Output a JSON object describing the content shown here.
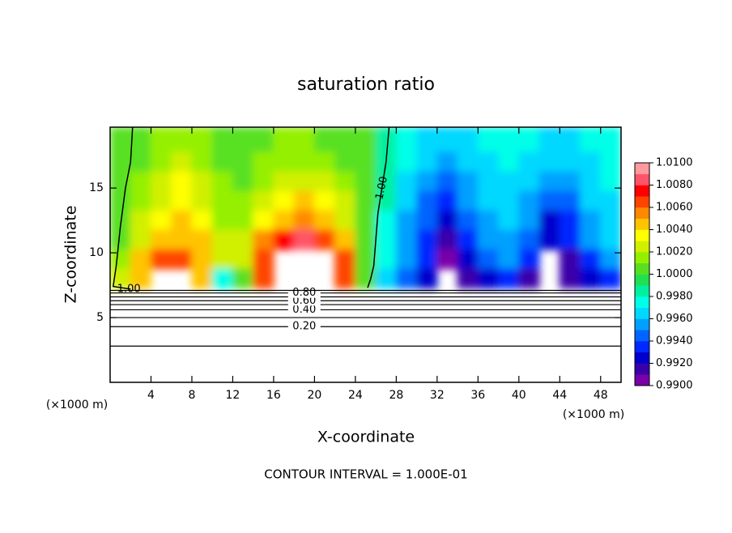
{
  "chart_data": {
    "type": "contour",
    "title": "saturation ratio",
    "x_label": "X-coordinate",
    "y_label": "Z-coordinate",
    "x_unit": "(×1000 m)",
    "footer": "CONTOUR INTERVAL = 1.000E-01",
    "xlim": [
      0,
      50
    ],
    "ylim": [
      0,
      19.7
    ],
    "xticks": [
      4,
      8,
      12,
      16,
      20,
      24,
      28,
      32,
      36,
      40,
      44,
      48
    ],
    "yticks": [
      5,
      10,
      15
    ],
    "clim": [
      0.99,
      1.01
    ],
    "colors": [
      "#7a00a8",
      "#3a00a8",
      "#0000cc",
      "#0028ff",
      "#0064ff",
      "#00a0ff",
      "#00d8ff",
      "#00ffe8",
      "#00f0a0",
      "#20e050",
      "#58e020",
      "#94f000",
      "#d0f000",
      "#ffff00",
      "#ffc400",
      "#ff8800",
      "#ff4400",
      "#ff0000",
      "#ff5468",
      "#ff9aa0"
    ],
    "colorbar_ticks": [
      {
        "value": 0.99,
        "label": "0.9900"
      },
      {
        "value": 0.992,
        "label": "0.9920"
      },
      {
        "value": 0.994,
        "label": "0.9940"
      },
      {
        "value": 0.996,
        "label": "0.9960"
      },
      {
        "value": 0.998,
        "label": "0.9980"
      },
      {
        "value": 1.0,
        "label": "1.0000"
      },
      {
        "value": 1.002,
        "label": "1.0020"
      },
      {
        "value": 1.004,
        "label": "1.0040"
      },
      {
        "value": 1.006,
        "label": "1.0060"
      },
      {
        "value": 1.008,
        "label": "1.0080"
      },
      {
        "value": 1.01,
        "label": "1.0100"
      }
    ],
    "x": [
      1,
      3,
      5,
      7,
      9,
      11,
      13,
      15,
      17,
      19,
      21,
      23,
      25,
      27,
      29,
      31,
      33,
      35,
      37,
      39,
      41,
      43,
      45,
      47,
      49
    ],
    "y": [
      18.5,
      17,
      15.5,
      14,
      12.5,
      11,
      9.5,
      8
    ],
    "z": [
      [
        1.0005,
        1.0008,
        1.0012,
        1.0015,
        1.0012,
        1.0008,
        1.0008,
        1.001,
        1.0012,
        1.0012,
        1.001,
        1.0007,
        1.0003,
        0.9988,
        0.9972,
        0.9968,
        0.9966,
        0.9968,
        0.997,
        0.9972,
        0.997,
        0.9968,
        0.9968,
        0.9972,
        0.9975
      ],
      [
        1.0005,
        1.001,
        1.0018,
        1.0025,
        1.0015,
        1.001,
        1.0008,
        1.0012,
        1.0018,
        1.0018,
        1.0016,
        1.001,
        1.0004,
        0.9985,
        0.997,
        0.9962,
        0.9955,
        0.9962,
        0.9968,
        0.997,
        0.9965,
        0.996,
        0.9962,
        0.9968,
        0.9972
      ],
      [
        1.0005,
        1.0012,
        1.0025,
        1.0032,
        1.002,
        1.0012,
        1.001,
        1.0018,
        1.0025,
        1.0028,
        1.0025,
        1.0015,
        1.0004,
        0.9982,
        0.9965,
        0.9955,
        0.9945,
        0.9955,
        0.9965,
        0.9968,
        0.996,
        0.995,
        0.9955,
        0.9965,
        0.997
      ],
      [
        1.0006,
        1.0015,
        1.003,
        1.0035,
        1.0028,
        1.0015,
        1.0012,
        1.0025,
        1.0035,
        1.0042,
        1.0035,
        1.002,
        1.0005,
        0.998,
        0.996,
        0.9948,
        0.9935,
        0.995,
        0.9962,
        0.9965,
        0.9955,
        0.994,
        0.9948,
        0.996,
        0.9968
      ],
      [
        1.0008,
        1.002,
        1.0035,
        1.0045,
        1.0035,
        1.0018,
        1.0015,
        1.0035,
        1.005,
        1.0058,
        1.005,
        1.003,
        1.0006,
        0.9978,
        0.9958,
        0.994,
        0.9925,
        0.994,
        0.9958,
        0.996,
        0.995,
        0.9928,
        0.9938,
        0.9955,
        0.9965
      ],
      [
        1.001,
        1.003,
        1.0042,
        1.0048,
        1.004,
        1.0022,
        1.0025,
        1.0055,
        1.0075,
        1.0082,
        1.007,
        1.0045,
        1.0008,
        0.9975,
        0.9955,
        0.9935,
        0.9918,
        0.9932,
        0.995,
        0.9955,
        0.9945,
        0.992,
        0.993,
        0.995,
        0.996
      ],
      [
        1.0015,
        1.004,
        1.006,
        1.0068,
        1.0045,
        1.002,
        1.003,
        1.007,
        null,
        null,
        null,
        1.006,
        1.001,
        0.997,
        0.995,
        0.993,
        0.9905,
        0.992,
        0.994,
        0.995,
        0.993,
        null,
        0.991,
        0.993,
        0.995
      ],
      [
        1.003,
        1.005,
        null,
        null,
        1.0045,
        0.9975,
        1.001,
        1.006,
        null,
        null,
        null,
        1.0065,
        1.0005,
        0.996,
        0.994,
        0.992,
        null,
        0.991,
        0.9925,
        0.9935,
        0.9915,
        null,
        0.991,
        0.992,
        0.993
      ]
    ],
    "level_lines": [
      {
        "level": 0.1,
        "y": 2.8
      },
      {
        "level": 0.2,
        "label": "0.20",
        "y": 4.3
      },
      {
        "level": 0.3,
        "y": 5.0
      },
      {
        "level": 0.4,
        "label": "0.40",
        "y": 5.6
      },
      {
        "level": 0.5,
        "y": 6.0
      },
      {
        "level": 0.6,
        "label": "0.60",
        "y": 6.3
      },
      {
        "level": 0.7,
        "y": 6.6
      },
      {
        "level": 0.8,
        "label": "0.80",
        "y": 6.9
      },
      {
        "level": 0.9,
        "y": 7.1
      }
    ],
    "contour_curves": [
      {
        "level": 1.0,
        "label": "1.00",
        "x": [
          27.3,
          27.0,
          26.6,
          26.2,
          26.0,
          25.8,
          25.5,
          25.2
        ],
        "y": [
          19.7,
          17,
          15,
          13,
          11,
          9,
          8,
          7.3
        ]
      },
      {
        "level": 1.0,
        "label": "1.00",
        "x": [
          2.2,
          2.0,
          1.5,
          1.0,
          0.6,
          0.3,
          2.0
        ],
        "y": [
          19.7,
          17,
          15,
          12,
          9,
          7.4,
          7.2
        ]
      }
    ]
  }
}
